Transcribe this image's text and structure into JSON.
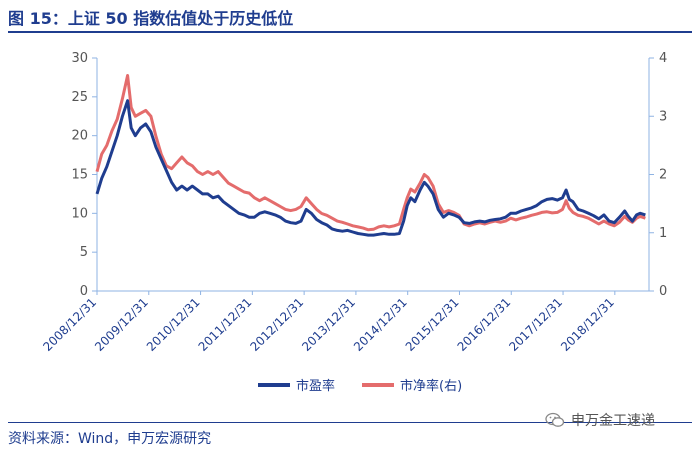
{
  "header": {
    "title": "图 15：上证 50 指数估值处于历史低位"
  },
  "footer": {
    "source": "资料来源：Wind，申万宏源研究",
    "watermark": "申万金工速递"
  },
  "chart_data": {
    "type": "line",
    "title": "图 15：上证 50 指数估值处于历史低位",
    "x_tick_labels": [
      "2008/12/31",
      "2009/12/31",
      "2010/12/31",
      "2011/12/31",
      "2012/12/31",
      "2013/12/31",
      "2014/12/31",
      "2015/12/31",
      "2016/12/31",
      "2017/12/31",
      "2018/12/31"
    ],
    "y_left": {
      "ylim": [
        0,
        30
      ],
      "ticks": [
        0,
        5,
        10,
        15,
        20,
        25,
        30
      ]
    },
    "y_right": {
      "ylim": [
        0,
        4
      ],
      "ticks": [
        0,
        1,
        2,
        3,
        4
      ]
    },
    "legend": "bottom-center",
    "series": [
      {
        "name": "市盈率",
        "axis": "left",
        "color": "#1f3d8f",
        "points": [
          [
            2008.96,
            12.5
          ],
          [
            2009.05,
            14.5
          ],
          [
            2009.15,
            16.0
          ],
          [
            2009.25,
            18.0
          ],
          [
            2009.35,
            20.0
          ],
          [
            2009.45,
            22.5
          ],
          [
            2009.55,
            24.5
          ],
          [
            2009.62,
            21.0
          ],
          [
            2009.7,
            20.0
          ],
          [
            2009.8,
            21.0
          ],
          [
            2009.9,
            21.5
          ],
          [
            2010.0,
            20.5
          ],
          [
            2010.1,
            18.5
          ],
          [
            2010.2,
            17.0
          ],
          [
            2010.3,
            15.5
          ],
          [
            2010.4,
            14.0
          ],
          [
            2010.5,
            13.0
          ],
          [
            2010.6,
            13.5
          ],
          [
            2010.7,
            13.0
          ],
          [
            2010.8,
            13.5
          ],
          [
            2010.9,
            13.0
          ],
          [
            2011.0,
            12.5
          ],
          [
            2011.1,
            12.5
          ],
          [
            2011.2,
            12.0
          ],
          [
            2011.3,
            12.2
          ],
          [
            2011.4,
            11.5
          ],
          [
            2011.5,
            11.0
          ],
          [
            2011.6,
            10.5
          ],
          [
            2011.7,
            10.0
          ],
          [
            2011.8,
            9.8
          ],
          [
            2011.9,
            9.5
          ],
          [
            2012.0,
            9.5
          ],
          [
            2012.1,
            10.0
          ],
          [
            2012.2,
            10.2
          ],
          [
            2012.3,
            10.0
          ],
          [
            2012.4,
            9.8
          ],
          [
            2012.5,
            9.5
          ],
          [
            2012.6,
            9.0
          ],
          [
            2012.7,
            8.8
          ],
          [
            2012.8,
            8.7
          ],
          [
            2012.9,
            9.0
          ],
          [
            2013.0,
            10.5
          ],
          [
            2013.1,
            10.0
          ],
          [
            2013.2,
            9.2
          ],
          [
            2013.3,
            8.8
          ],
          [
            2013.4,
            8.5
          ],
          [
            2013.5,
            8.0
          ],
          [
            2013.6,
            7.8
          ],
          [
            2013.7,
            7.7
          ],
          [
            2013.8,
            7.8
          ],
          [
            2013.9,
            7.6
          ],
          [
            2014.0,
            7.4
          ],
          [
            2014.1,
            7.3
          ],
          [
            2014.2,
            7.2
          ],
          [
            2014.3,
            7.2
          ],
          [
            2014.4,
            7.3
          ],
          [
            2014.5,
            7.4
          ],
          [
            2014.6,
            7.3
          ],
          [
            2014.7,
            7.3
          ],
          [
            2014.8,
            7.4
          ],
          [
            2014.88,
            9.0
          ],
          [
            2014.95,
            11.0
          ],
          [
            2015.02,
            12.0
          ],
          [
            2015.1,
            11.5
          ],
          [
            2015.2,
            13.0
          ],
          [
            2015.28,
            14.0
          ],
          [
            2015.35,
            13.5
          ],
          [
            2015.45,
            12.5
          ],
          [
            2015.55,
            10.5
          ],
          [
            2015.65,
            9.5
          ],
          [
            2015.75,
            10.0
          ],
          [
            2015.85,
            9.8
          ],
          [
            2015.95,
            9.5
          ],
          [
            2016.05,
            8.8
          ],
          [
            2016.15,
            8.7
          ],
          [
            2016.25,
            8.9
          ],
          [
            2016.35,
            9.0
          ],
          [
            2016.45,
            8.9
          ],
          [
            2016.55,
            9.1
          ],
          [
            2016.65,
            9.2
          ],
          [
            2016.75,
            9.3
          ],
          [
            2016.85,
            9.5
          ],
          [
            2016.95,
            10.0
          ],
          [
            2017.05,
            10.0
          ],
          [
            2017.15,
            10.3
          ],
          [
            2017.25,
            10.5
          ],
          [
            2017.35,
            10.7
          ],
          [
            2017.45,
            11.0
          ],
          [
            2017.55,
            11.5
          ],
          [
            2017.65,
            11.8
          ],
          [
            2017.75,
            11.9
          ],
          [
            2017.85,
            11.7
          ],
          [
            2017.95,
            12.0
          ],
          [
            2018.02,
            13.0
          ],
          [
            2018.08,
            11.8
          ],
          [
            2018.15,
            11.5
          ],
          [
            2018.25,
            10.5
          ],
          [
            2018.35,
            10.3
          ],
          [
            2018.45,
            10.0
          ],
          [
            2018.55,
            9.7
          ],
          [
            2018.65,
            9.3
          ],
          [
            2018.75,
            9.8
          ],
          [
            2018.85,
            9.0
          ],
          [
            2018.95,
            8.8
          ],
          [
            2019.05,
            9.5
          ],
          [
            2019.15,
            10.3
          ],
          [
            2019.22,
            9.6
          ],
          [
            2019.3,
            9.0
          ],
          [
            2019.38,
            9.8
          ],
          [
            2019.45,
            10.0
          ],
          [
            2019.55,
            9.8
          ]
        ]
      },
      {
        "name": "市净率(右)",
        "axis": "right",
        "color": "#e46c6c",
        "points": [
          [
            2008.96,
            2.05
          ],
          [
            2009.05,
            2.35
          ],
          [
            2009.15,
            2.5
          ],
          [
            2009.25,
            2.75
          ],
          [
            2009.35,
            2.95
          ],
          [
            2009.45,
            3.3
          ],
          [
            2009.55,
            3.7
          ],
          [
            2009.62,
            3.15
          ],
          [
            2009.7,
            3.0
          ],
          [
            2009.8,
            3.05
          ],
          [
            2009.9,
            3.1
          ],
          [
            2010.0,
            3.0
          ],
          [
            2010.1,
            2.65
          ],
          [
            2010.2,
            2.35
          ],
          [
            2010.3,
            2.15
          ],
          [
            2010.4,
            2.1
          ],
          [
            2010.5,
            2.2
          ],
          [
            2010.6,
            2.3
          ],
          [
            2010.7,
            2.2
          ],
          [
            2010.8,
            2.15
          ],
          [
            2010.9,
            2.05
          ],
          [
            2011.0,
            2.0
          ],
          [
            2011.1,
            2.05
          ],
          [
            2011.2,
            2.0
          ],
          [
            2011.3,
            2.05
          ],
          [
            2011.4,
            1.95
          ],
          [
            2011.5,
            1.85
          ],
          [
            2011.6,
            1.8
          ],
          [
            2011.7,
            1.75
          ],
          [
            2011.8,
            1.7
          ],
          [
            2011.9,
            1.68
          ],
          [
            2012.0,
            1.6
          ],
          [
            2012.1,
            1.55
          ],
          [
            2012.2,
            1.6
          ],
          [
            2012.3,
            1.55
          ],
          [
            2012.4,
            1.5
          ],
          [
            2012.5,
            1.45
          ],
          [
            2012.6,
            1.4
          ],
          [
            2012.7,
            1.38
          ],
          [
            2012.8,
            1.4
          ],
          [
            2012.9,
            1.45
          ],
          [
            2013.0,
            1.6
          ],
          [
            2013.1,
            1.5
          ],
          [
            2013.2,
            1.4
          ],
          [
            2013.3,
            1.33
          ],
          [
            2013.4,
            1.3
          ],
          [
            2013.5,
            1.25
          ],
          [
            2013.6,
            1.2
          ],
          [
            2013.7,
            1.18
          ],
          [
            2013.8,
            1.15
          ],
          [
            2013.9,
            1.12
          ],
          [
            2014.0,
            1.1
          ],
          [
            2014.1,
            1.08
          ],
          [
            2014.2,
            1.05
          ],
          [
            2014.3,
            1.06
          ],
          [
            2014.4,
            1.1
          ],
          [
            2014.5,
            1.12
          ],
          [
            2014.6,
            1.1
          ],
          [
            2014.7,
            1.12
          ],
          [
            2014.8,
            1.15
          ],
          [
            2014.88,
            1.4
          ],
          [
            2014.95,
            1.6
          ],
          [
            2015.02,
            1.75
          ],
          [
            2015.1,
            1.7
          ],
          [
            2015.2,
            1.85
          ],
          [
            2015.28,
            2.0
          ],
          [
            2015.35,
            1.95
          ],
          [
            2015.45,
            1.8
          ],
          [
            2015.55,
            1.5
          ],
          [
            2015.65,
            1.35
          ],
          [
            2015.75,
            1.38
          ],
          [
            2015.85,
            1.35
          ],
          [
            2015.95,
            1.3
          ],
          [
            2016.05,
            1.15
          ],
          [
            2016.15,
            1.12
          ],
          [
            2016.25,
            1.15
          ],
          [
            2016.35,
            1.17
          ],
          [
            2016.45,
            1.15
          ],
          [
            2016.55,
            1.18
          ],
          [
            2016.65,
            1.2
          ],
          [
            2016.75,
            1.18
          ],
          [
            2016.85,
            1.2
          ],
          [
            2016.95,
            1.25
          ],
          [
            2017.05,
            1.22
          ],
          [
            2017.15,
            1.25
          ],
          [
            2017.25,
            1.27
          ],
          [
            2017.35,
            1.3
          ],
          [
            2017.45,
            1.32
          ],
          [
            2017.55,
            1.35
          ],
          [
            2017.65,
            1.36
          ],
          [
            2017.75,
            1.34
          ],
          [
            2017.85,
            1.35
          ],
          [
            2017.95,
            1.4
          ],
          [
            2018.02,
            1.55
          ],
          [
            2018.08,
            1.42
          ],
          [
            2018.15,
            1.35
          ],
          [
            2018.25,
            1.3
          ],
          [
            2018.35,
            1.28
          ],
          [
            2018.45,
            1.25
          ],
          [
            2018.55,
            1.2
          ],
          [
            2018.65,
            1.15
          ],
          [
            2018.75,
            1.2
          ],
          [
            2018.85,
            1.15
          ],
          [
            2018.95,
            1.12
          ],
          [
            2019.05,
            1.18
          ],
          [
            2019.15,
            1.28
          ],
          [
            2019.22,
            1.22
          ],
          [
            2019.3,
            1.18
          ],
          [
            2019.38,
            1.25
          ],
          [
            2019.45,
            1.28
          ],
          [
            2019.55,
            1.25
          ]
        ]
      }
    ]
  }
}
